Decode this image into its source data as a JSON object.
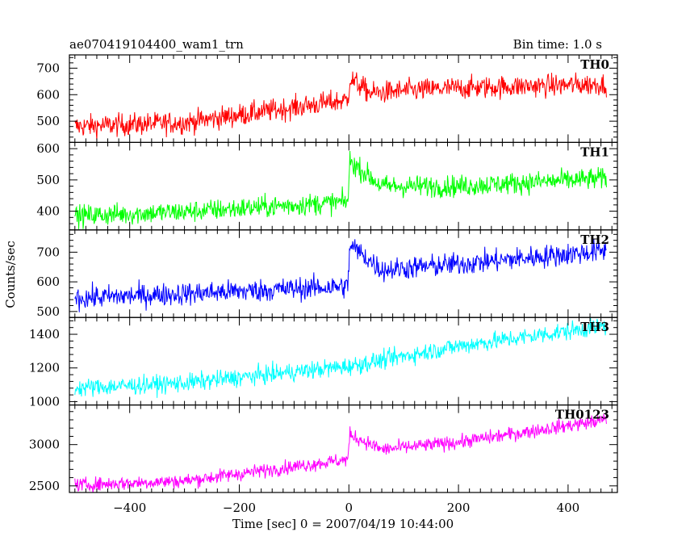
{
  "header": {
    "title": "ae070419104400_wam1_trn",
    "bin_time": "Bin time: 1.0 s"
  },
  "chart_data": {
    "type": "line",
    "xlabel": "Time [sec] 0 = 2007/04/19 10:44:00",
    "ylabel": "Counts/sec",
    "xlim": [
      -510,
      490
    ],
    "x_ticks": [
      -400,
      -200,
      0,
      200,
      400
    ],
    "x_tick_labels": [
      "−400",
      "−200",
      "0",
      "200",
      "400"
    ],
    "x_range": [
      -500,
      470
    ],
    "bin_time_s": 1.0,
    "grid": false,
    "panels": [
      {
        "name": "TH0",
        "color": "#ff0000",
        "ylim": [
          420,
          750
        ],
        "yticks": [
          500,
          600,
          700
        ],
        "approx_level": {
          "x": [
            -500,
            -300,
            -2,
            2,
            40,
            100,
            200,
            470
          ],
          "y": [
            480,
            495,
            580,
            660,
            605,
            615,
            625,
            640
          ]
        },
        "noise_amplitude": 55
      },
      {
        "name": "TH1",
        "color": "#00ff00",
        "ylim": [
          340,
          620
        ],
        "yticks": [
          400,
          500,
          600
        ],
        "approx_level": {
          "x": [
            -500,
            -300,
            -2,
            2,
            60,
            200,
            470
          ],
          "y": [
            385,
            398,
            430,
            560,
            480,
            480,
            505
          ]
        },
        "noise_amplitude": 45
      },
      {
        "name": "TH2",
        "color": "#0000ff",
        "ylim": [
          480,
          775
        ],
        "yticks": [
          500,
          600,
          700
        ],
        "approx_level": {
          "x": [
            -500,
            -300,
            -2,
            2,
            60,
            200,
            470
          ],
          "y": [
            545,
            560,
            585,
            725,
            640,
            660,
            705
          ]
        },
        "noise_amplitude": 50
      },
      {
        "name": "TH3",
        "color": "#00ffff",
        "ylim": [
          980,
          1500
        ],
        "yticks": [
          1000,
          1200,
          1400
        ],
        "approx_level": {
          "x": [
            -500,
            -300,
            0,
            200,
            470
          ],
          "y": [
            1080,
            1110,
            1210,
            1330,
            1450
          ]
        },
        "noise_amplitude": 70
      },
      {
        "name": "TH0123",
        "color": "#ff00ff",
        "ylim": [
          2420,
          3480
        ],
        "yticks": [
          2500,
          3000
        ],
        "approx_level": {
          "x": [
            -500,
            -300,
            -2,
            2,
            60,
            200,
            470
          ],
          "y": [
            2510,
            2560,
            2820,
            3120,
            2940,
            3030,
            3300
          ]
        },
        "noise_amplitude": 110
      }
    ]
  }
}
